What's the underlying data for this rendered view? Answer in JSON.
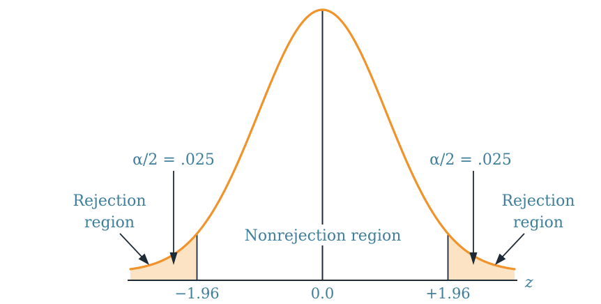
{
  "diagram": {
    "axis_label": "z",
    "ticks": [
      {
        "value": -1.96,
        "label": "−1.96"
      },
      {
        "value": 0.0,
        "label": "0.0"
      },
      {
        "value": 1.96,
        "label": "+1.96"
      }
    ],
    "alpha_left": "α/2 = .025",
    "alpha_right": "α/2 = .025",
    "rejection_left": [
      "Rejection",
      "region"
    ],
    "rejection_right": [
      "Rejection",
      "region"
    ],
    "nonrejection": "Nonrejection region",
    "critical_value": 1.96,
    "z_range": [
      -3.0,
      3.0
    ],
    "curve_color": "#f0932b",
    "tail_fill_color": "#fbe3c4",
    "text_color": "#3f7f9c",
    "line_color": "#1e2a36"
  }
}
